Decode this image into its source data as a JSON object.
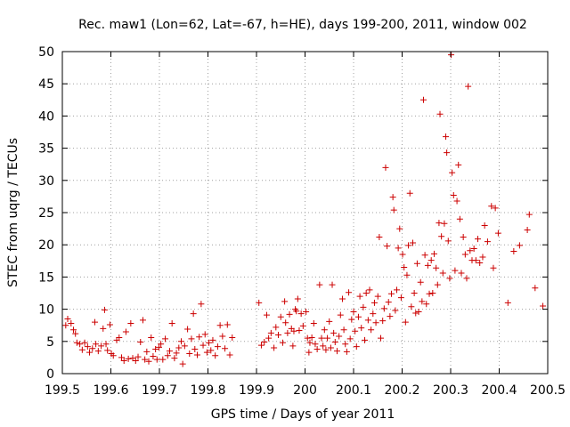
{
  "chart_data": {
    "type": "scatter",
    "title": "Rec. maw1 (Lon=62, Lat=-67, h=HE), days 199-200, 2011, window 002",
    "xlabel": "GPS time / Days of year 2011",
    "ylabel": "STEC from uqrg / TECUs",
    "xlim": [
      199.5,
      200.5
    ],
    "ylim": [
      0,
      50
    ],
    "xticks": [
      199.5,
      199.6,
      199.7,
      199.8,
      199.9,
      200,
      200.1,
      200.2,
      200.3,
      200.4,
      200.5
    ],
    "xtick_labels": [
      "199.5",
      "199.6",
      "199.7",
      "199.8",
      "199.9",
      "200",
      "200.1",
      "200.2",
      "200.3",
      "200.4",
      "200.5"
    ],
    "yticks": [
      0,
      5,
      10,
      15,
      20,
      25,
      30,
      35,
      40,
      45,
      50
    ],
    "ytick_labels": [
      "0",
      "5",
      "10",
      "15",
      "20",
      "25",
      "30",
      "35",
      "40",
      "45",
      "50"
    ],
    "grid": true,
    "marker": "+",
    "color": "#cc0000",
    "series": [
      {
        "name": "STEC",
        "points": [
          [
            199.507,
            7.5
          ],
          [
            199.511,
            8.5
          ],
          [
            199.518,
            7.8
          ],
          [
            199.523,
            6.8
          ],
          [
            199.527,
            6.2
          ],
          [
            199.53,
            4.8
          ],
          [
            199.536,
            4.6
          ],
          [
            199.541,
            3.7
          ],
          [
            199.546,
            4.8
          ],
          [
            199.552,
            4.2
          ],
          [
            199.556,
            3.3
          ],
          [
            199.562,
            3.9
          ],
          [
            199.567,
            8.0
          ],
          [
            199.569,
            4.6
          ],
          [
            199.574,
            3.5
          ],
          [
            199.58,
            4.3
          ],
          [
            199.584,
            7.0
          ],
          [
            199.587,
            9.9
          ],
          [
            199.59,
            4.6
          ],
          [
            199.593,
            3.6
          ],
          [
            199.598,
            7.6
          ],
          [
            199.601,
            3.1
          ],
          [
            199.605,
            2.8
          ],
          [
            199.612,
            5.2
          ],
          [
            199.617,
            5.6
          ],
          [
            199.622,
            2.5
          ],
          [
            199.627,
            2.0
          ],
          [
            199.631,
            6.5
          ],
          [
            199.636,
            2.3
          ],
          [
            199.641,
            7.8
          ],
          [
            199.645,
            2.4
          ],
          [
            199.651,
            2.0
          ],
          [
            199.656,
            2.6
          ],
          [
            199.661,
            4.9
          ],
          [
            199.666,
            8.3
          ],
          [
            199.67,
            2.2
          ],
          [
            199.674,
            3.4
          ],
          [
            199.678,
            1.9
          ],
          [
            199.683,
            5.6
          ],
          [
            199.687,
            2.7
          ],
          [
            199.692,
            3.8
          ],
          [
            199.695,
            2.2
          ],
          [
            199.699,
            4.1
          ],
          [
            199.703,
            4.6
          ],
          [
            199.707,
            2.2
          ],
          [
            199.712,
            5.4
          ],
          [
            199.717,
            2.8
          ],
          [
            199.721,
            3.5
          ],
          [
            199.726,
            7.8
          ],
          [
            199.731,
            2.4
          ],
          [
            199.735,
            3.2
          ],
          [
            199.74,
            4.0
          ],
          [
            199.745,
            5.0
          ],
          [
            199.748,
            1.5
          ],
          [
            199.752,
            4.3
          ],
          [
            199.758,
            6.9
          ],
          [
            199.762,
            3.1
          ],
          [
            199.766,
            5.4
          ],
          [
            199.77,
            9.3
          ],
          [
            199.773,
            3.8
          ],
          [
            199.778,
            2.9
          ],
          [
            199.782,
            5.7
          ],
          [
            199.786,
            10.8
          ],
          [
            199.79,
            4.4
          ],
          [
            199.794,
            6.1
          ],
          [
            199.798,
            3.3
          ],
          [
            199.802,
            4.8
          ],
          [
            199.806,
            3.6
          ],
          [
            199.81,
            5.2
          ],
          [
            199.815,
            2.8
          ],
          [
            199.82,
            4.2
          ],
          [
            199.825,
            7.5
          ],
          [
            199.83,
            5.8
          ],
          [
            199.835,
            3.9
          ],
          [
            199.84,
            7.6
          ],
          [
            199.845,
            2.9
          ],
          [
            199.85,
            5.6
          ],
          [
            199.905,
            11.0
          ],
          [
            199.91,
            4.4
          ],
          [
            199.916,
            4.9
          ],
          [
            199.921,
            9.1
          ],
          [
            199.925,
            5.5
          ],
          [
            199.93,
            6.3
          ],
          [
            199.936,
            4.0
          ],
          [
            199.94,
            7.2
          ],
          [
            199.945,
            6.0
          ],
          [
            199.95,
            8.8
          ],
          [
            199.954,
            4.8
          ],
          [
            199.958,
            11.2
          ],
          [
            199.96,
            7.9
          ],
          [
            199.964,
            6.3
          ],
          [
            199.968,
            9.2
          ],
          [
            199.972,
            7.0
          ],
          [
            199.975,
            4.3
          ],
          [
            199.977,
            6.6
          ],
          [
            199.98,
            10.0
          ],
          [
            199.982,
            9.7
          ],
          [
            199.985,
            11.6
          ],
          [
            199.988,
            6.7
          ],
          [
            199.992,
            9.3
          ],
          [
            199.996,
            7.4
          ],
          [
            200.002,
            9.6
          ],
          [
            200.005,
            5.5
          ],
          [
            200.008,
            3.3
          ],
          [
            200.01,
            4.8
          ],
          [
            200.014,
            5.6
          ],
          [
            200.018,
            7.8
          ],
          [
            200.021,
            4.6
          ],
          [
            200.025,
            3.8
          ],
          [
            200.03,
            13.8
          ],
          [
            200.034,
            5.5
          ],
          [
            200.037,
            4.3
          ],
          [
            200.04,
            6.8
          ],
          [
            200.043,
            3.7
          ],
          [
            200.046,
            5.5
          ],
          [
            200.05,
            8.1
          ],
          [
            200.053,
            4.0
          ],
          [
            200.056,
            13.8
          ],
          [
            200.059,
            6.3
          ],
          [
            200.062,
            4.9
          ],
          [
            200.066,
            3.5
          ],
          [
            200.07,
            5.8
          ],
          [
            200.073,
            9.1
          ],
          [
            200.077,
            11.6
          ],
          [
            200.08,
            6.8
          ],
          [
            200.083,
            4.6
          ],
          [
            200.086,
            3.4
          ],
          [
            200.09,
            12.6
          ],
          [
            200.093,
            5.4
          ],
          [
            200.096,
            8.4
          ],
          [
            200.1,
            9.6
          ],
          [
            200.103,
            6.6
          ],
          [
            200.106,
            4.2
          ],
          [
            200.11,
            8.8
          ],
          [
            200.113,
            12.0
          ],
          [
            200.116,
            7.1
          ],
          [
            200.12,
            10.3
          ],
          [
            200.123,
            5.2
          ],
          [
            200.126,
            12.5
          ],
          [
            200.13,
            8.3
          ],
          [
            200.133,
            13.0
          ],
          [
            200.136,
            6.8
          ],
          [
            200.14,
            9.3
          ],
          [
            200.143,
            11.0
          ],
          [
            200.146,
            7.9
          ],
          [
            200.15,
            12.0
          ],
          [
            200.153,
            21.2
          ],
          [
            200.156,
            5.5
          ],
          [
            200.16,
            8.2
          ],
          [
            200.163,
            10.1
          ],
          [
            200.166,
            32.0
          ],
          [
            200.169,
            19.8
          ],
          [
            200.172,
            11.1
          ],
          [
            200.175,
            8.9
          ],
          [
            200.178,
            12.4
          ],
          [
            200.181,
            27.4
          ],
          [
            200.183,
            25.4
          ],
          [
            200.186,
            9.8
          ],
          [
            200.189,
            13.0
          ],
          [
            200.192,
            19.5
          ],
          [
            200.195,
            22.5
          ],
          [
            200.198,
            11.8
          ],
          [
            200.201,
            18.5
          ],
          [
            200.204,
            16.5
          ],
          [
            200.207,
            8.0
          ],
          [
            200.21,
            15.3
          ],
          [
            200.213,
            19.9
          ],
          [
            200.216,
            28.0
          ],
          [
            200.219,
            10.4
          ],
          [
            200.222,
            20.3
          ],
          [
            200.225,
            12.5
          ],
          [
            200.228,
            9.4
          ],
          [
            200.231,
            17.1
          ],
          [
            200.234,
            9.6
          ],
          [
            200.238,
            14.2
          ],
          [
            200.241,
            11.2
          ],
          [
            200.244,
            42.5
          ],
          [
            200.247,
            18.4
          ],
          [
            200.25,
            10.8
          ],
          [
            200.253,
            16.8
          ],
          [
            200.256,
            12.4
          ],
          [
            200.26,
            17.6
          ],
          [
            200.263,
            12.5
          ],
          [
            200.266,
            18.6
          ],
          [
            200.27,
            16.4
          ],
          [
            200.273,
            13.8
          ],
          [
            200.276,
            23.4
          ],
          [
            200.278,
            40.3
          ],
          [
            200.281,
            21.3
          ],
          [
            200.284,
            15.6
          ],
          [
            200.287,
            23.3
          ],
          [
            200.29,
            36.8
          ],
          [
            200.292,
            34.3
          ],
          [
            200.295,
            20.6
          ],
          [
            200.298,
            14.8
          ],
          [
            200.301,
            49.5
          ],
          [
            200.303,
            31.2
          ],
          [
            200.306,
            27.7
          ],
          [
            200.309,
            16.0
          ],
          [
            200.313,
            26.8
          ],
          [
            200.316,
            32.4
          ],
          [
            200.319,
            24.0
          ],
          [
            200.322,
            15.6
          ],
          [
            200.326,
            21.2
          ],
          [
            200.33,
            18.5
          ],
          [
            200.333,
            14.8
          ],
          [
            200.336,
            44.6
          ],
          [
            200.34,
            19.1
          ],
          [
            200.344,
            17.6
          ],
          [
            200.348,
            19.4
          ],
          [
            200.352,
            17.6
          ],
          [
            200.356,
            20.9
          ],
          [
            200.36,
            17.2
          ],
          [
            200.366,
            18.1
          ],
          [
            200.37,
            23.0
          ],
          [
            200.376,
            20.5
          ],
          [
            200.384,
            26.0
          ],
          [
            200.388,
            16.4
          ],
          [
            200.392,
            25.7
          ],
          [
            200.398,
            21.8
          ],
          [
            200.418,
            11.0
          ],
          [
            200.43,
            19.0
          ],
          [
            200.442,
            19.9
          ],
          [
            200.458,
            22.3
          ],
          [
            200.462,
            24.7
          ],
          [
            200.474,
            13.3
          ],
          [
            200.49,
            10.5
          ]
        ]
      }
    ]
  }
}
